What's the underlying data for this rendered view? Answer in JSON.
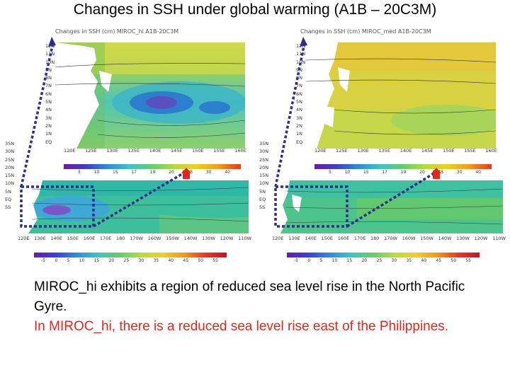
{
  "title": "Changes in SSH under global warming (A1B – 20C3M)",
  "panels": {
    "left_top_label": "Changes in SSH (cm) MIROC_hi A1B-20C3M",
    "right_top_label": "Changes in SSH (cm) MIROC_med A1B-20C3M",
    "lat_ticks_top": [
      "12N",
      "11N",
      "10N",
      "9N",
      "8N",
      "7N",
      "6N",
      "5N",
      "4N",
      "3N",
      "2N",
      "1N",
      "EQ"
    ],
    "lon_ticks_top": [
      "120E",
      "125E",
      "130E",
      "135E",
      "140E",
      "145E",
      "150E",
      "155E",
      "160E"
    ],
    "lat_ticks_left": [
      "35N",
      "30N",
      "25N",
      "20N",
      "15N",
      "10N",
      "5N",
      "EQ",
      "5S"
    ],
    "lon_ticks_bottom": [
      "120E",
      "130E",
      "140E",
      "150E",
      "160E",
      "170E",
      "180",
      "170W",
      "160W",
      "150W",
      "140W",
      "130W",
      "120W",
      "110W"
    ],
    "cbar_ticks_small": [
      "5",
      "10",
      "15",
      "17",
      "19",
      "20",
      "25",
      "30",
      "40"
    ],
    "cbar_ticks_large": [
      "-5",
      "0",
      "5",
      "10",
      "15",
      "20",
      "25",
      "30",
      "35",
      "40",
      "45",
      "50",
      "55"
    ]
  },
  "colors": {
    "red": "#e8251c",
    "dotted": "#2c2f8a"
  },
  "caption": {
    "line1": "MIROC_hi exhibits a region of reduced sea level rise in the North Pacific Gyre.",
    "line2": "In MIROC_hi, there is a reduced sea level rise east of the Philippines."
  }
}
